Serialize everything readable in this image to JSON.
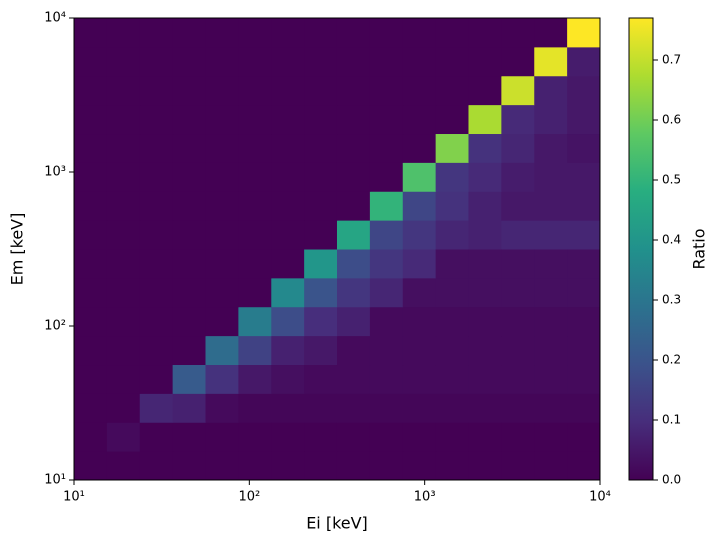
{
  "chart_data": {
    "type": "heatmap",
    "xlabel": "Ei [keV]",
    "ylabel": "Em [keV]",
    "colorbar_label": "Ratio",
    "xscale": "log",
    "yscale": "log",
    "colormap": "viridis",
    "x_bins": [
      10,
      15.4,
      23.71,
      36.52,
      56.23,
      86.6,
      133.4,
      205.4,
      316.2,
      487,
      749.9,
      1155,
      1778,
      2738,
      4217,
      6494,
      10000
    ],
    "y_bins": [
      10,
      15.4,
      23.71,
      36.52,
      56.23,
      86.6,
      133.4,
      205.4,
      316.2,
      487,
      749.9,
      1155,
      1778,
      2738,
      4217,
      6494,
      10000
    ],
    "values": [
      [
        0,
        0,
        0,
        0,
        0,
        0,
        0,
        0,
        0,
        0,
        0,
        0,
        0,
        0,
        0,
        0
      ],
      [
        0,
        0.02,
        0,
        0,
        0,
        0,
        0,
        0,
        0,
        0,
        0,
        0,
        0,
        0,
        0,
        0
      ],
      [
        0,
        0,
        0.08,
        0.07,
        0.02,
        0.01,
        0.01,
        0.01,
        0.01,
        0.01,
        0.01,
        0.01,
        0.01,
        0.01,
        0.01,
        0.01
      ],
      [
        0,
        0,
        0,
        0.22,
        0.11,
        0.05,
        0.03,
        0.02,
        0.02,
        0.02,
        0.02,
        0.02,
        0.02,
        0.02,
        0.02,
        0.02
      ],
      [
        0,
        0,
        0,
        0,
        0.27,
        0.15,
        0.07,
        0.05,
        0.02,
        0.02,
        0.02,
        0.02,
        0.02,
        0.02,
        0.02,
        0.02
      ],
      [
        0,
        0,
        0,
        0,
        0,
        0.32,
        0.18,
        0.1,
        0.07,
        0.02,
        0.02,
        0.02,
        0.02,
        0.02,
        0.02,
        0.02
      ],
      [
        0,
        0,
        0,
        0,
        0,
        0,
        0.36,
        0.2,
        0.12,
        0.08,
        0.03,
        0.03,
        0.03,
        0.03,
        0.03,
        0.03
      ],
      [
        0,
        0,
        0,
        0,
        0,
        0,
        0,
        0.4,
        0.18,
        0.12,
        0.09,
        0.03,
        0.03,
        0.03,
        0.03,
        0.03
      ],
      [
        0,
        0,
        0,
        0,
        0,
        0,
        0,
        0,
        0.45,
        0.16,
        0.12,
        0.08,
        0.07,
        0.08,
        0.08,
        0.08
      ],
      [
        0,
        0,
        0,
        0,
        0,
        0,
        0,
        0,
        0,
        0.5,
        0.16,
        0.11,
        0.07,
        0.05,
        0.05,
        0.05
      ],
      [
        0,
        0,
        0,
        0,
        0,
        0,
        0,
        0,
        0,
        0,
        0.55,
        0.12,
        0.09,
        0.06,
        0.05,
        0.05
      ],
      [
        0,
        0,
        0,
        0,
        0,
        0,
        0,
        0,
        0,
        0,
        0,
        0.62,
        0.11,
        0.08,
        0.05,
        0.04
      ],
      [
        0,
        0,
        0,
        0,
        0,
        0,
        0,
        0,
        0,
        0,
        0,
        0,
        0.67,
        0.09,
        0.07,
        0.05
      ],
      [
        0,
        0,
        0,
        0,
        0,
        0,
        0,
        0,
        0,
        0,
        0,
        0,
        0,
        0.71,
        0.07,
        0.05
      ],
      [
        0,
        0,
        0,
        0,
        0,
        0,
        0,
        0,
        0,
        0,
        0,
        0,
        0,
        0,
        0.74,
        0.06
      ],
      [
        0,
        0,
        0,
        0,
        0,
        0,
        0,
        0,
        0,
        0,
        0,
        0,
        0,
        0,
        0,
        0.77
      ]
    ],
    "xlim": [
      10,
      10000
    ],
    "ylim": [
      10,
      10000
    ],
    "xticks": [
      {
        "value": 10,
        "label": "10¹"
      },
      {
        "value": 100,
        "label": "10²"
      },
      {
        "value": 1000,
        "label": "10³"
      },
      {
        "value": 10000,
        "label": "10⁴"
      }
    ],
    "yticks": [
      {
        "value": 10,
        "label": "10¹"
      },
      {
        "value": 100,
        "label": "10²"
      },
      {
        "value": 1000,
        "label": "10³"
      },
      {
        "value": 10000,
        "label": "10⁴"
      }
    ],
    "clim": [
      0,
      0.77
    ],
    "cticks": [
      0.0,
      0.1,
      0.2,
      0.3,
      0.4,
      0.5,
      0.6,
      0.7
    ]
  }
}
